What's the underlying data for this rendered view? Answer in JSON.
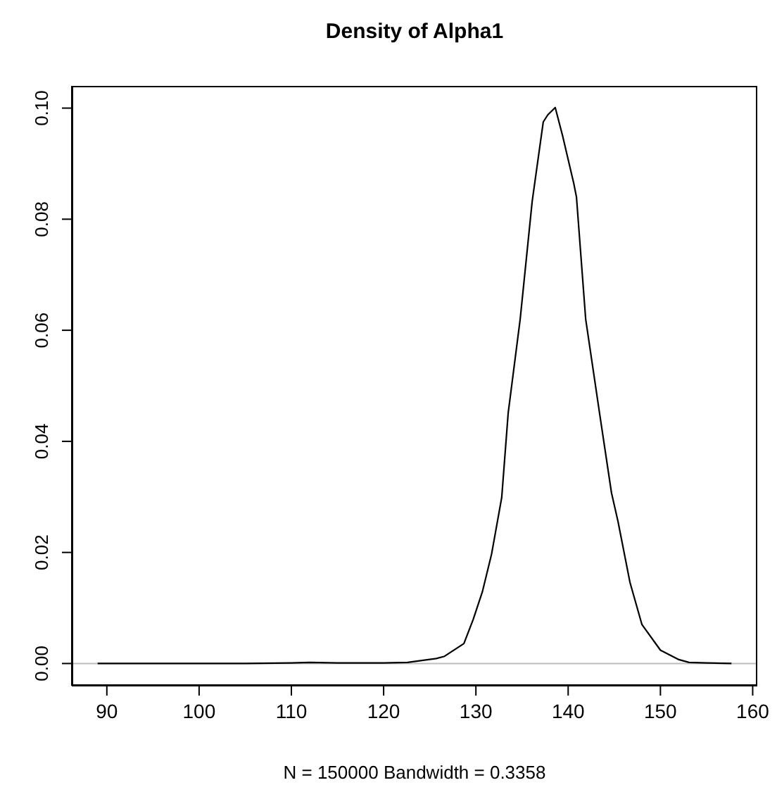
{
  "chart_data": {
    "type": "line",
    "title": "Density of Alpha1",
    "xlabel": "N = 150000   Bandwidth = 0.3358",
    "xlim": [
      86.2,
      160.5
    ],
    "ylim": [
      -0.004,
      0.104
    ],
    "xticks": [
      90,
      100,
      110,
      120,
      130,
      140,
      150,
      160
    ],
    "yticks": [
      {
        "value": 0,
        "label": "0.00"
      },
      {
        "value": 0.02,
        "label": "0.02"
      },
      {
        "value": 0.04,
        "label": "0.04"
      },
      {
        "value": 0.06,
        "label": "0.06"
      },
      {
        "value": 0.08,
        "label": "0.08"
      },
      {
        "value": 0.1,
        "label": "0.10"
      }
    ],
    "marker": "none",
    "line_style": "solid",
    "ref_lines": [
      {
        "axis": "y",
        "value": 0,
        "color": "#bebebe"
      }
    ],
    "series": [
      {
        "color": "#000000",
        "x": [
          89.0,
          95,
          100,
          105,
          110,
          112,
          115,
          120,
          122.6,
          125.7,
          126.6,
          128.7,
          129.7,
          130.7,
          131.7,
          132.8,
          133.5,
          134.8,
          136.1,
          137.3,
          137.8,
          138.6,
          139.4,
          140.6,
          140.9,
          141.9,
          143.4,
          144.7,
          145.4,
          146.7,
          148.0,
          150.0,
          152.0,
          153.1,
          155,
          157.7
        ],
        "values": [
          0,
          0,
          0,
          0,
          0.0001,
          0.0002,
          0.0001,
          0.0001,
          0.0002,
          0.0009,
          0.0013,
          0.0036,
          0.0079,
          0.0129,
          0.0197,
          0.0299,
          0.0451,
          0.062,
          0.0832,
          0.0975,
          0.0988,
          0.1001,
          0.095,
          0.0865,
          0.084,
          0.062,
          0.0451,
          0.0307,
          0.0256,
          0.0146,
          0.007,
          0.0024,
          0.0007,
          0.0002,
          0.0001,
          0
        ]
      }
    ]
  }
}
